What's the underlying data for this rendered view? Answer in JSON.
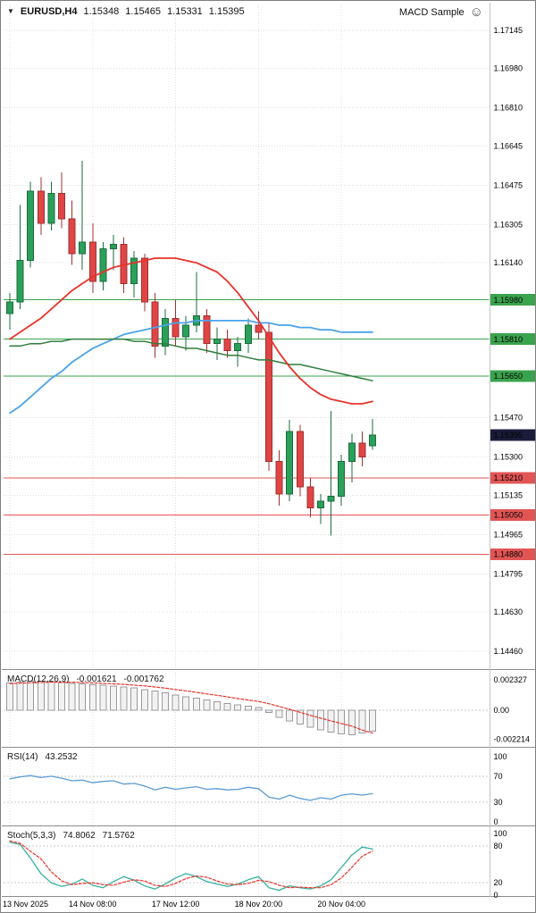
{
  "header": {
    "dropdown_glyph": "▼",
    "symbol_period": "EURUSD,H4",
    "open": "1.15348",
    "high": "1.15465",
    "low": "1.15331",
    "close": "1.15395",
    "ea_name": "MACD Sample",
    "ea_icon_glyph": "☺"
  },
  "indicators": {
    "macd": {
      "name": "MACD(12,26,9)",
      "value_main": "-0.001621",
      "value_signal": "-0.001762"
    },
    "rsi": {
      "name": "RSI(14)",
      "value": "43.2532"
    },
    "stoch": {
      "name": "Stoch(5,3,3)",
      "value_main": "74.8062",
      "value_signal": "71.5762"
    }
  },
  "chart_data": {
    "type": "candlestick",
    "symbol": "EURUSD",
    "timeframe": "H4",
    "ohlc_current": {
      "open": 1.15348,
      "high": 1.15465,
      "low": 1.15331,
      "close": 1.15395
    },
    "price_axis": {
      "top": 1.17145,
      "bottom": 1.1446,
      "ticks": [
        {
          "p": 1.17145,
          "label": "1.17145"
        },
        {
          "p": 1.1698,
          "label": "1.16980"
        },
        {
          "p": 1.1681,
          "label": "1.16810"
        },
        {
          "p": 1.16645,
          "label": "1.16645"
        },
        {
          "p": 1.16475,
          "label": "1.16475"
        },
        {
          "p": 1.16305,
          "label": "1.16305"
        },
        {
          "p": 1.1614,
          "label": "1.16140"
        },
        {
          "p": 1.1547,
          "label": "1.15470"
        },
        {
          "p": 1.153,
          "label": "1.15300"
        },
        {
          "p": 1.15135,
          "label": "1.15135"
        },
        {
          "p": 1.14965,
          "label": "1.14965"
        },
        {
          "p": 1.14795,
          "label": "1.14795"
        },
        {
          "p": 1.1463,
          "label": "1.14630"
        },
        {
          "p": 1.1446,
          "label": "1.14460"
        }
      ]
    },
    "time_labels": [
      {
        "index": 0,
        "label": "13 Nov 2025"
      },
      {
        "index": 8,
        "label": "14 Nov 08:00"
      },
      {
        "index": 16,
        "label": "17 Nov 12:00"
      },
      {
        "index": 24,
        "label": "18 Nov 20:00"
      },
      {
        "index": 32,
        "label": "20 Nov 04:00"
      }
    ],
    "candles": [
      [
        1.1592,
        1.1601,
        1.1585,
        1.1597
      ],
      [
        1.1597,
        1.1639,
        1.1594,
        1.1615
      ],
      [
        1.1615,
        1.1649,
        1.1612,
        1.1645
      ],
      [
        1.1645,
        1.1651,
        1.1626,
        1.1631
      ],
      [
        1.1631,
        1.1649,
        1.1628,
        1.1644
      ],
      [
        1.1644,
        1.1653,
        1.1629,
        1.1633
      ],
      [
        1.1633,
        1.1641,
        1.1613,
        1.1618
      ],
      [
        1.1618,
        1.1658,
        1.1611,
        1.1623
      ],
      [
        1.1623,
        1.1631,
        1.1601,
        1.1606
      ],
      [
        1.1606,
        1.1623,
        1.1602,
        1.162
      ],
      [
        1.162,
        1.1626,
        1.1611,
        1.1622
      ],
      [
        1.1622,
        1.1625,
        1.1601,
        1.1605
      ],
      [
        1.1605,
        1.1619,
        1.1599,
        1.1616
      ],
      [
        1.1616,
        1.1618,
        1.1593,
        1.1597
      ],
      [
        1.1597,
        1.1601,
        1.1573,
        1.1578
      ],
      [
        1.1578,
        1.1594,
        1.1574,
        1.159
      ],
      [
        1.159,
        1.1598,
        1.1578,
        1.1582
      ],
      [
        1.1582,
        1.1591,
        1.1576,
        1.1587
      ],
      [
        1.1587,
        1.161,
        1.1584,
        1.1591
      ],
      [
        1.1591,
        1.1594,
        1.1575,
        1.1579
      ],
      [
        1.1579,
        1.1586,
        1.1572,
        1.1581
      ],
      [
        1.1581,
        1.1585,
        1.1573,
        1.1576
      ],
      [
        1.1576,
        1.1582,
        1.1569,
        1.1579
      ],
      [
        1.1579,
        1.159,
        1.1575,
        1.1587
      ],
      [
        1.1587,
        1.1593,
        1.1581,
        1.1584
      ],
      [
        1.1584,
        1.1588,
        1.1524,
        1.1528
      ],
      [
        1.1528,
        1.1533,
        1.1509,
        1.1514
      ],
      [
        1.1514,
        1.1546,
        1.1511,
        1.1541
      ],
      [
        1.1541,
        1.1544,
        1.1513,
        1.1517
      ],
      [
        1.1517,
        1.1521,
        1.1504,
        1.1508
      ],
      [
        1.1508,
        1.1514,
        1.1501,
        1.1511
      ],
      [
        1.1511,
        1.155,
        1.1496,
        1.1513
      ],
      [
        1.1513,
        1.1531,
        1.1509,
        1.1528
      ],
      [
        1.1528,
        1.154,
        1.1519,
        1.1536
      ],
      [
        1.1536,
        1.1541,
        1.1526,
        1.153
      ],
      [
        1.15348,
        1.15465,
        1.15331,
        1.15395
      ]
    ],
    "ma": {
      "red": [
        1.1581,
        1.1584,
        1.1587,
        1.159,
        1.1594,
        1.1598,
        1.1602,
        1.1605,
        1.1608,
        1.161,
        1.1612,
        1.1613,
        1.1614,
        1.1615,
        1.1616,
        1.1616,
        1.1616,
        1.1615,
        1.1614,
        1.1612,
        1.161,
        1.1606,
        1.1601,
        1.1595,
        1.1589,
        1.1582,
        1.1575,
        1.1569,
        1.1564,
        1.156,
        1.1557,
        1.1555,
        1.1554,
        1.1553,
        1.1553,
        1.1554
      ],
      "blue": [
        1.1549,
        1.1552,
        1.1556,
        1.156,
        1.1564,
        1.1567,
        1.1571,
        1.1574,
        1.1577,
        1.1579,
        1.1581,
        1.1583,
        1.1584,
        1.1585,
        1.1586,
        1.1587,
        1.1588,
        1.1588,
        1.1589,
        1.1589,
        1.1589,
        1.1589,
        1.1589,
        1.1589,
        1.1588,
        1.1588,
        1.1587,
        1.1587,
        1.1586,
        1.1586,
        1.1585,
        1.1585,
        1.1584,
        1.1584,
        1.1584,
        1.1584
      ],
      "green": [
        1.1578,
        1.1578,
        1.1579,
        1.1579,
        1.158,
        1.158,
        1.1581,
        1.1581,
        1.1581,
        1.1581,
        1.1581,
        1.1581,
        1.158,
        1.158,
        1.1579,
        1.1579,
        1.1578,
        1.1577,
        1.1577,
        1.1576,
        1.1575,
        1.1574,
        1.1574,
        1.1573,
        1.1572,
        1.1572,
        1.1571,
        1.157,
        1.157,
        1.1569,
        1.1568,
        1.1567,
        1.1566,
        1.1565,
        1.1564,
        1.1563
      ]
    },
    "levels": {
      "resistance": [
        {
          "p": 1.1598,
          "label": "1.15980"
        },
        {
          "p": 1.1581,
          "label": "1.15810"
        },
        {
          "p": 1.1565,
          "label": "1.15650"
        }
      ],
      "support": [
        {
          "p": 1.1521,
          "label": "1.15210"
        },
        {
          "p": 1.1505,
          "label": "1.15050"
        },
        {
          "p": 1.1488,
          "label": "1.14880"
        }
      ],
      "current": {
        "p": 1.15395,
        "label": "1.15395"
      }
    },
    "macd": {
      "histogram": [
        0.0021,
        0.00216,
        0.00221,
        0.00223,
        0.00219,
        0.00212,
        0.00206,
        0.00201,
        0.00196,
        0.00191,
        0.00186,
        0.00179,
        0.0017,
        0.00159,
        0.00146,
        0.00132,
        0.00117,
        0.00103,
        0.00092,
        0.00079,
        0.00066,
        0.00053,
        0.00041,
        0.00031,
        0.00021,
        -0.00018,
        -0.00054,
        -0.00081,
        -0.00106,
        -0.00129,
        -0.00149,
        -0.00166,
        -0.00181,
        -0.00189,
        -0.00174,
        -0.001621
      ],
      "signal": [
        0.00204,
        0.00207,
        0.0021,
        0.00213,
        0.00215,
        0.00215,
        0.00214,
        0.00212,
        0.00209,
        0.00206,
        0.00202,
        0.00198,
        0.00192,
        0.00186,
        0.00178,
        0.00169,
        0.00159,
        0.00148,
        0.00137,
        0.00125,
        0.00114,
        0.00102,
        0.0009,
        0.00078,
        0.00067,
        0.0005,
        0.00029,
        7e-05,
        -0.00016,
        -0.00039,
        -0.00061,
        -0.00082,
        -0.00102,
        -0.00121,
        -0.00152,
        -0.001762
      ],
      "axis": [
        {
          "v": 0.002327,
          "label": "0.002327"
        },
        {
          "v": 0,
          "label": "0.00"
        },
        {
          "v": -0.002214,
          "label": "-0.002214"
        }
      ]
    },
    "rsi": {
      "values": [
        66,
        69,
        71,
        68,
        70,
        67,
        63,
        64,
        60,
        62,
        63,
        58,
        59,
        55,
        49,
        53,
        50,
        52,
        54,
        50,
        51,
        49,
        50,
        53,
        51,
        38,
        35,
        41,
        36,
        33,
        37,
        35,
        41,
        43,
        41,
        43.2532
      ],
      "axis": [
        {
          "v": 100,
          "label": "100"
        },
        {
          "v": 70,
          "label": "70"
        },
        {
          "v": 30,
          "label": "30"
        },
        {
          "v": 0,
          "label": "0"
        }
      ],
      "levels": [
        70,
        30
      ]
    },
    "stoch": {
      "main": [
        86,
        82,
        60,
        35,
        20,
        14,
        18,
        26,
        16,
        12,
        22,
        30,
        24,
        15,
        10,
        18,
        28,
        35,
        30,
        22,
        18,
        14,
        18,
        25,
        30,
        12,
        8,
        15,
        12,
        10,
        15,
        25,
        45,
        65,
        78,
        74.8062
      ],
      "signal": [
        88,
        84,
        71,
        59,
        38,
        23,
        17,
        19,
        20,
        17,
        16,
        21,
        25,
        23,
        16,
        14,
        19,
        27,
        31,
        29,
        23,
        18,
        17,
        19,
        24,
        22,
        16,
        12,
        13,
        12,
        12,
        17,
        28,
        45,
        63,
        71.5762
      ],
      "axis": [
        {
          "v": 100,
          "label": "100"
        },
        {
          "v": 80,
          "label": "80"
        },
        {
          "v": 20,
          "label": "20"
        },
        {
          "v": 0,
          "label": "0"
        }
      ],
      "levels": [
        80,
        20
      ]
    }
  },
  "colors": {
    "bull_fill": "#2aa05a",
    "bull_border": "#1a6b3c",
    "bear_fill": "#e04545",
    "bear_border": "#a03030",
    "ma_red": "#e8332a",
    "ma_blue": "#4aa3e8",
    "ma_green": "#2f7d3b",
    "level_green": "#3aa34d",
    "level_red": "#e25555",
    "current_badge": "#1b1b3a",
    "rsi_line": "#5b9bd5",
    "stoch_main": "#35b0a0",
    "signal_red": "#e8332a",
    "grid": "#dcdcdc",
    "separator": "#8c8c8c",
    "axis_divider": "#c4c4c4",
    "hist_fill": "#f2f2f2",
    "hist_border": "#9a9a9a"
  }
}
